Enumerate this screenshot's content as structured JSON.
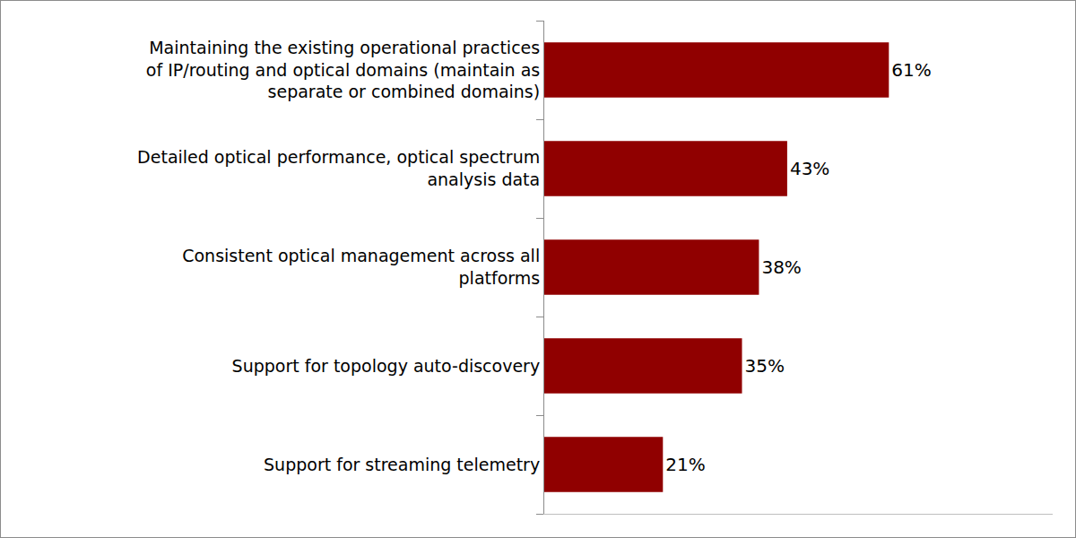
{
  "chart_data": {
    "type": "bar",
    "orientation": "horizontal",
    "categories": [
      "Maintaining the existing operational practices of IP/routing and optical domains (maintain as separate or combined domains)",
      "Detailed optical performance, optical spectrum analysis data",
      "Consistent optical management across all platforms",
      "Support for topology auto-discovery",
      "Support for streaming telemetry"
    ],
    "values": [
      61,
      43,
      38,
      35,
      21
    ],
    "value_labels": [
      "61%",
      "43%",
      "38%",
      "35%",
      "21%"
    ],
    "color": "#900000",
    "xlim": [
      0,
      90
    ],
    "data_labels": true,
    "tick_labels": "y",
    "grid": false
  }
}
